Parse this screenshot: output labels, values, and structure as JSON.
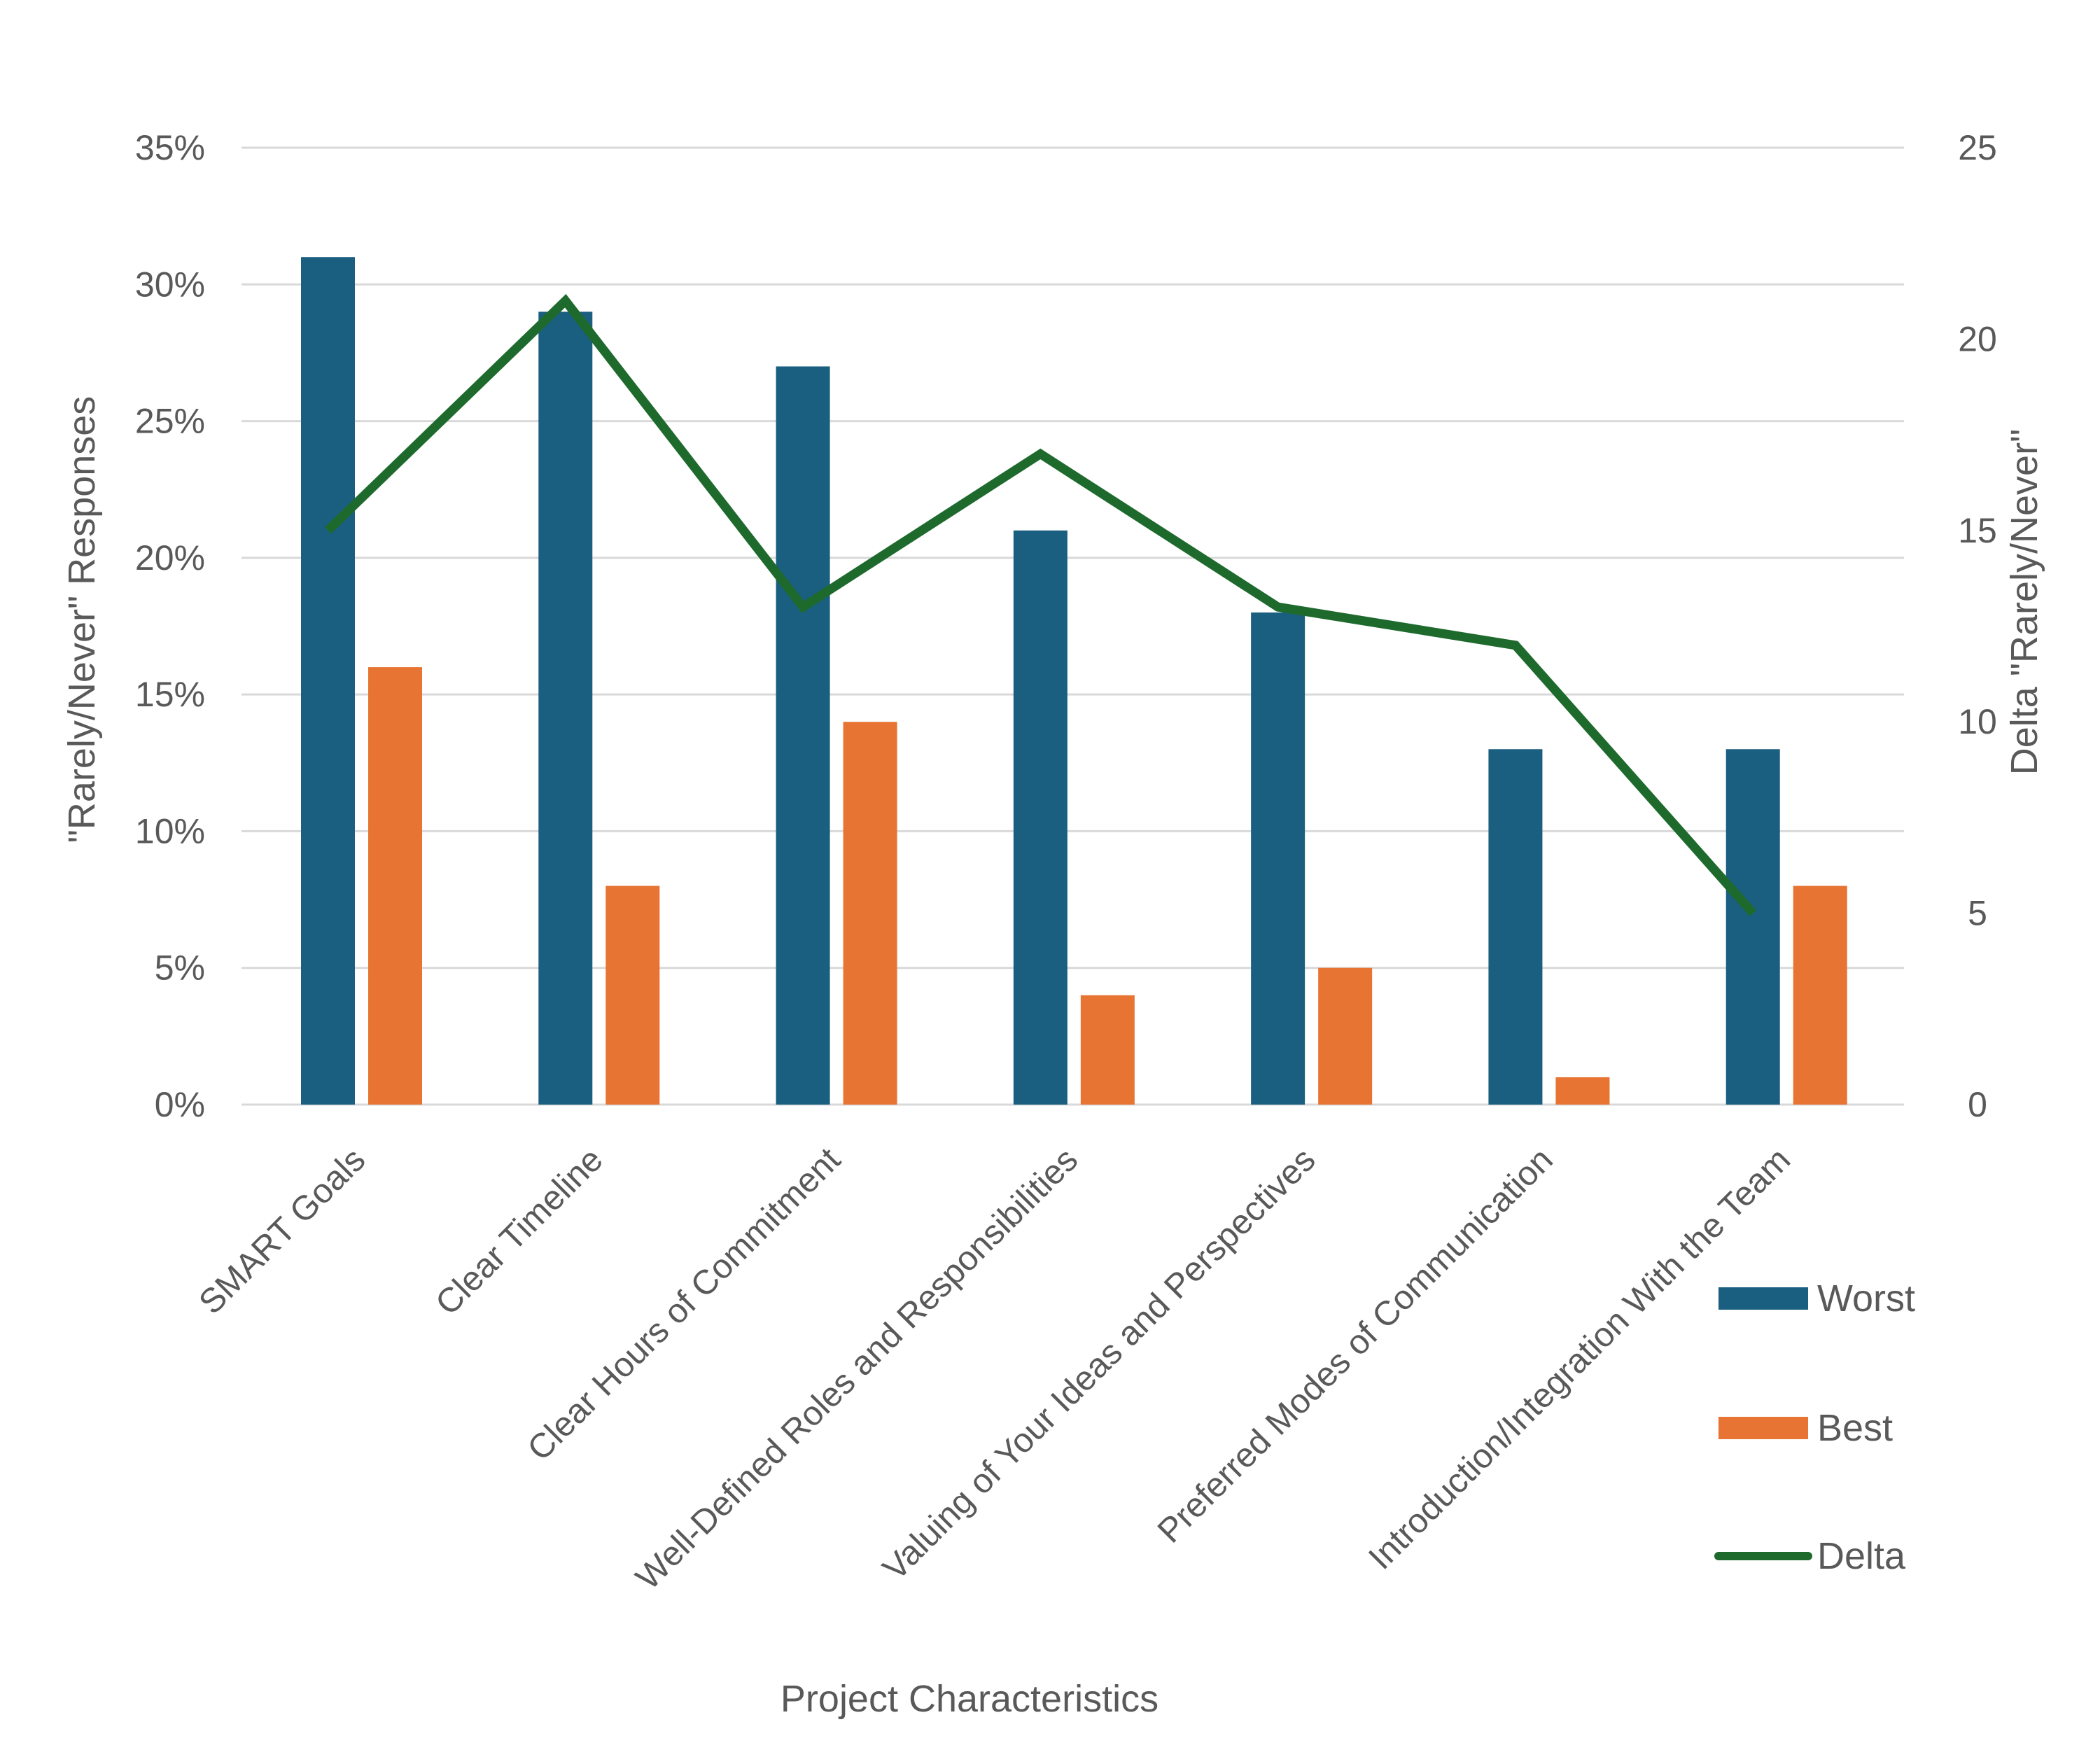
{
  "chart_data": {
    "type": "bar",
    "title": "",
    "xlabel": "Project Characteristics",
    "ylabel": "\"Rarely/Never\" Responses",
    "y2label": "Delta \"Rarely/Never\"",
    "ylim": [
      0,
      35
    ],
    "y2lim": [
      0,
      25
    ],
    "grid": true,
    "legend_position": "right",
    "y_ticks": [
      "0%",
      "5%",
      "10%",
      "15%",
      "20%",
      "25%",
      "30%",
      "35%"
    ],
    "y2_ticks": [
      "0",
      "5",
      "10",
      "15",
      "20",
      "25"
    ],
    "categories": [
      "SMART Goals",
      "Clear Timeline",
      "Clear Hours of Commitment",
      "Well-Defined Roles and Responsibilities",
      "Valuing of Your Ideas and Perspectives",
      "Preferred Modes of Communication",
      "Introduction/Integration With the Team"
    ],
    "series": [
      {
        "name": "Worst",
        "type": "bar",
        "axis": "left",
        "unit": "%",
        "color": "#1a5e80",
        "values": [
          31,
          29,
          27,
          21,
          18,
          13,
          13
        ]
      },
      {
        "name": "Best",
        "type": "bar",
        "axis": "left",
        "unit": "%",
        "color": "#e77432",
        "values": [
          16,
          8,
          14,
          4,
          5,
          1,
          8
        ]
      },
      {
        "name": "Delta",
        "type": "line",
        "axis": "right",
        "unit": "",
        "color": "#1e6a2d",
        "values": [
          15,
          21,
          13,
          17,
          13,
          12,
          5
        ]
      }
    ]
  }
}
